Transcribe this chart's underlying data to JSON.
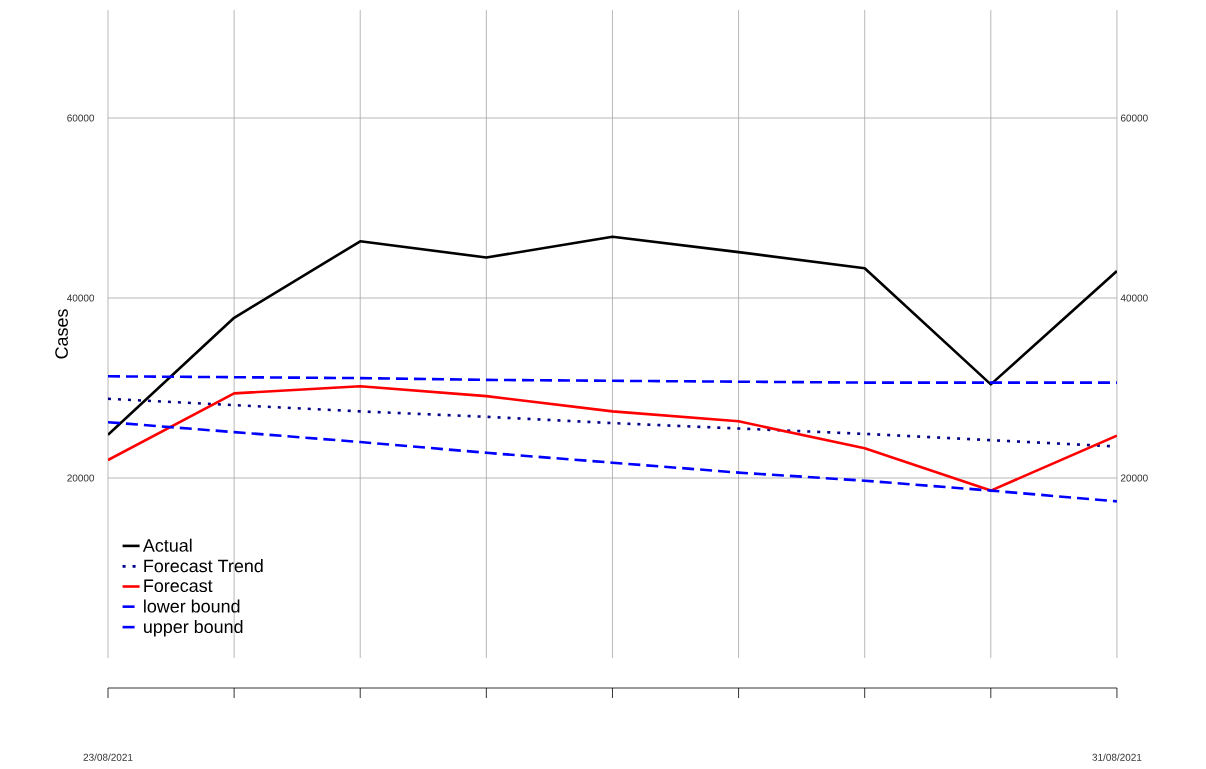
{
  "chart_data": {
    "type": "line",
    "ylabel": "Cases",
    "x": [
      "2021-08-23",
      "2021-08-24",
      "2021-08-25",
      "2021-08-26",
      "2021-08-27",
      "2021-08-28",
      "2021-08-29",
      "2021-08-30",
      "2021-08-31"
    ],
    "series": [
      {
        "name": "Actual",
        "color": "#000000",
        "line_style": "solid",
        "values": [
          24800,
          37800,
          46300,
          44500,
          46800,
          45100,
          43300,
          30400,
          43000
        ]
      },
      {
        "name": "Forecast Trend",
        "color": "#00008b",
        "line_style": "dotted",
        "values": [
          28800,
          28100,
          27400,
          26800,
          26100,
          25500,
          24900,
          24200,
          23500
        ]
      },
      {
        "name": "Forecast",
        "color": "#ff0000",
        "line_style": "solid",
        "values": [
          22000,
          29400,
          30200,
          29100,
          27400,
          26300,
          23300,
          18600,
          24700
        ]
      },
      {
        "name": "lower bound",
        "color": "#0000ff",
        "line_style": "dashed",
        "values": [
          26200,
          25100,
          24000,
          22800,
          21700,
          20600,
          19700,
          18600,
          17400
        ]
      },
      {
        "name": "upper bound",
        "color": "#0000ff",
        "line_style": "dashed",
        "values": [
          31300,
          31200,
          31100,
          30900,
          30800,
          30700,
          30600,
          30600,
          30600
        ]
      }
    ],
    "xlim": [
      "2021-08-23",
      "2021-08-31"
    ],
    "xticks": [
      {
        "value": "2021-08-23",
        "label": "23/08/2021"
      },
      {
        "value": "2021-08-24",
        "label": null
      },
      {
        "value": "2021-08-25",
        "label": null
      },
      {
        "value": "2021-08-26",
        "label": null
      },
      {
        "value": "2021-08-27",
        "label": null
      },
      {
        "value": "2021-08-28",
        "label": null
      },
      {
        "value": "2021-08-29",
        "label": null
      },
      {
        "value": "2021-08-30",
        "label": null
      },
      {
        "value": "2021-08-31",
        "label": "31/08/2021"
      }
    ],
    "ylim": [
      0,
      72000
    ],
    "yticks": [
      20000,
      40000,
      60000
    ],
    "y2lim": [
      0,
      72000
    ],
    "y2ticks": [
      20000,
      40000,
      60000
    ],
    "grid": true,
    "legend": "bottom left"
  }
}
